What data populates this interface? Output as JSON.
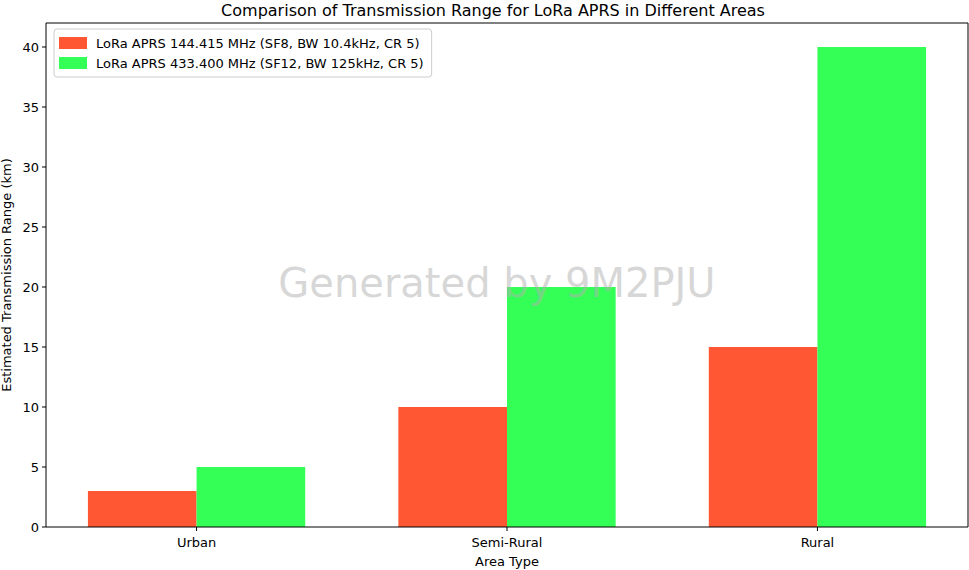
{
  "chart_data": {
    "type": "bar",
    "title": "Comparison of Transmission Range for LoRa APRS in Different Areas",
    "x_label": "Area Type",
    "y_label": "Estimated Transmission Range (km)",
    "categories": [
      "Urban",
      "Semi-Rural",
      "Rural"
    ],
    "series": [
      {
        "name": "LoRa APRS 144.415 MHz (SF8, BW 10.4kHz, CR 5)",
        "color": "#ff5733",
        "values": [
          3,
          10,
          15
        ]
      },
      {
        "name": "LoRa APRS 433.400 MHz (SF12, BW 125kHz, CR 5)",
        "color": "#33ff57",
        "values": [
          5,
          20,
          40
        ]
      }
    ],
    "ylim": [
      0,
      42
    ],
    "yticks": [
      0,
      5,
      10,
      15,
      20,
      25,
      30,
      35,
      40
    ],
    "grid": false,
    "legend": "upper left",
    "annotations": [
      "Generated by 9M2PJU"
    ]
  }
}
